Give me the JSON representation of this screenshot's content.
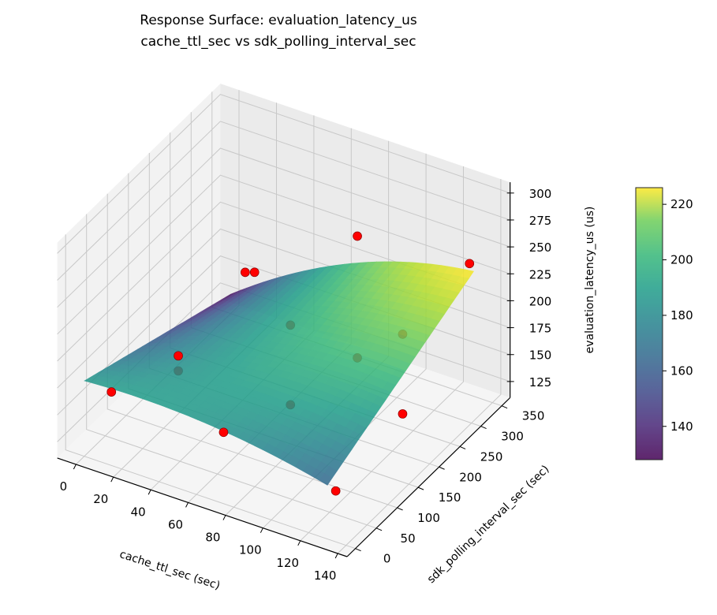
{
  "chart_data": {
    "type": "surface3d",
    "title": "Response Surface: evaluation_latency_us",
    "subtitle": "cache_ttl_sec vs sdk_polling_interval_sec",
    "xlabel": "cache_ttl_sec (sec)",
    "ylabel": "sdk_polling_interval_sec (sec)",
    "zlabel": "evaluation_latency_us (us)",
    "xlim": [
      -10,
      145
    ],
    "ylim": [
      -20,
      370
    ],
    "zlim": [
      110,
      310
    ],
    "xticks": [
      0,
      20,
      40,
      60,
      80,
      100,
      120,
      140
    ],
    "yticks": [
      0,
      50,
      100,
      150,
      200,
      250,
      300,
      350
    ],
    "zticks": [
      125,
      150,
      175,
      200,
      225,
      250,
      275,
      300
    ],
    "grid": true,
    "colormap": "viridis",
    "colorbar": {
      "vmin": 128,
      "vmax": 226,
      "ticks": [
        140,
        160,
        180,
        200,
        220
      ],
      "placement": "right"
    },
    "surface_domain": {
      "x": [
        0,
        130
      ],
      "y": [
        0,
        350
      ]
    },
    "observed_points_color": "#ff0000",
    "observed_points": [
      {
        "x": 10,
        "y": 20,
        "z": 168
      },
      {
        "x": 70,
        "y": 20,
        "z": 166
      },
      {
        "x": 130,
        "y": 20,
        "z": 147
      },
      {
        "x": 10,
        "y": 180,
        "z": 141
      },
      {
        "x": 10,
        "y": 180,
        "z": 127
      },
      {
        "x": 70,
        "y": 180,
        "z": 205
      },
      {
        "x": 70,
        "y": 180,
        "z": 131
      },
      {
        "x": 130,
        "y": 180,
        "z": 232
      },
      {
        "x": 130,
        "y": 180,
        "z": 158
      },
      {
        "x": 10,
        "y": 340,
        "z": 158
      },
      {
        "x": 15,
        "y": 340,
        "z": 161
      },
      {
        "x": 70,
        "y": 340,
        "z": 227
      },
      {
        "x": 70,
        "y": 340,
        "z": 114
      },
      {
        "x": 130,
        "y": 340,
        "z": 237
      }
    ]
  }
}
